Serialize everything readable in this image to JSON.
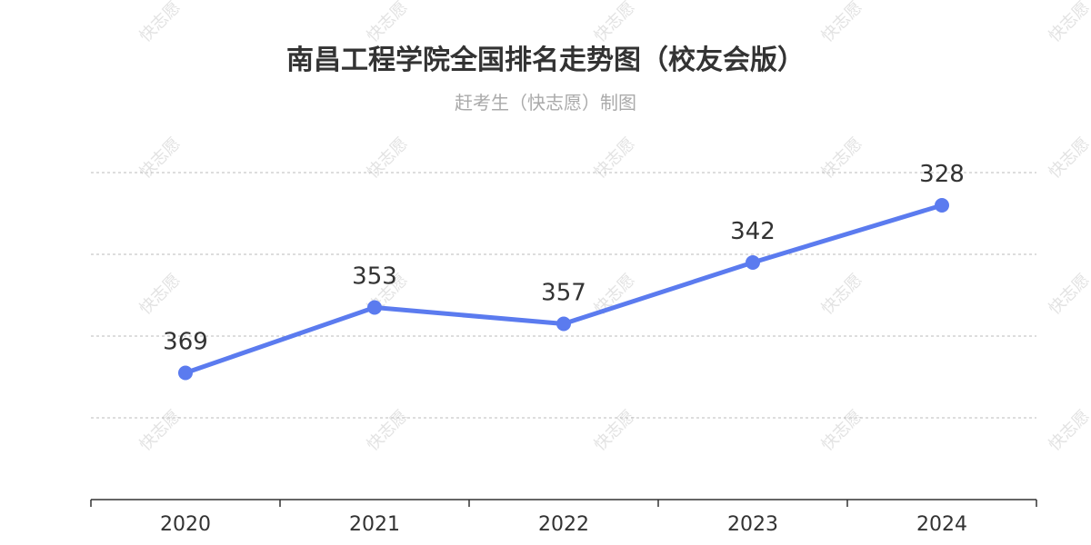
{
  "title": "南昌工程学院全国排名走势图（校友会版）",
  "subtitle": "赶考生（快志愿）制图",
  "watermark": "快志愿",
  "colors": {
    "line": "#5b7bef",
    "grid": "#bbbbbb",
    "axis": "#333333",
    "text": "#333333",
    "subtitle": "#aaaaaa"
  },
  "chart_data": {
    "type": "line",
    "categories": [
      "2020",
      "2021",
      "2022",
      "2023",
      "2024"
    ],
    "values": [
      369,
      353,
      357,
      342,
      328
    ],
    "y_inverted": true,
    "ylim": [
      320,
      400
    ],
    "grid": true,
    "data_labels": true
  }
}
